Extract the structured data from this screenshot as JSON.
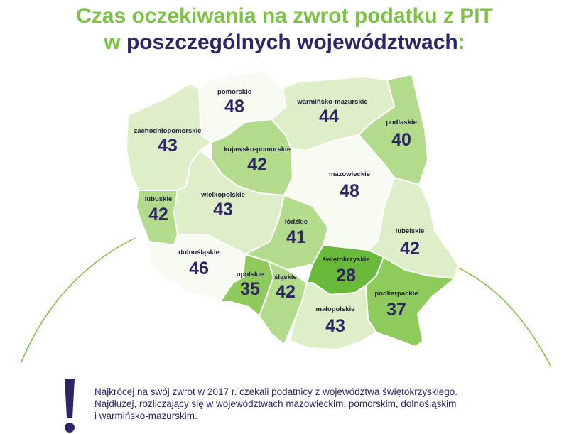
{
  "title": {
    "line1": "Czas oczekiwania na zwrot podatku z PIT",
    "line2_prefix": "w ",
    "line2_main": "poszczególnych województwach",
    "line2_suffix": ":"
  },
  "colors": {
    "title_green": "#7cc245",
    "title_dark": "#2f2566",
    "value_text": "#2f2566",
    "shade_white": "#f7fbf1",
    "shade_light": "#ddeec9",
    "shade_mid": "#b3db8c",
    "shade_dark": "#8fcb5c",
    "shade_min": "#69b93a",
    "border": "#ffffff"
  },
  "voivodeships": [
    {
      "name": "pomorskie",
      "value": "48"
    },
    {
      "name": "warmińsko-mazurskie",
      "value": "44"
    },
    {
      "name": "zachodniopomorskie",
      "value": "43"
    },
    {
      "name": "kujawsko-pomorskie",
      "value": "42"
    },
    {
      "name": "podlaskie",
      "value": "40"
    },
    {
      "name": "mazowieckie",
      "value": "48"
    },
    {
      "name": "lubuskie",
      "value": "42"
    },
    {
      "name": "wielkopolskie",
      "value": "43"
    },
    {
      "name": "łódzkie",
      "value": "41"
    },
    {
      "name": "lubelskie",
      "value": "42"
    },
    {
      "name": "dolnośląskie",
      "value": "46"
    },
    {
      "name": "świętokrzyskie",
      "value": "28"
    },
    {
      "name": "opolskie",
      "value": "35"
    },
    {
      "name": "śląskie",
      "value": "42"
    },
    {
      "name": "podkarpackie",
      "value": "37"
    },
    {
      "name": "małopolskie",
      "value": "43"
    }
  ],
  "note": {
    "icon": "exclamation-icon",
    "line1": "Najkrócej na swój zwrot w 2017 r. czekali podatnicy z województwa świętokrzyskiego.",
    "line2": "Najdłużej, rozliczający się w województwach mazowieckim, pomorskim, dolnośląskim",
    "line3": "i warmińsko-mazurskim."
  }
}
